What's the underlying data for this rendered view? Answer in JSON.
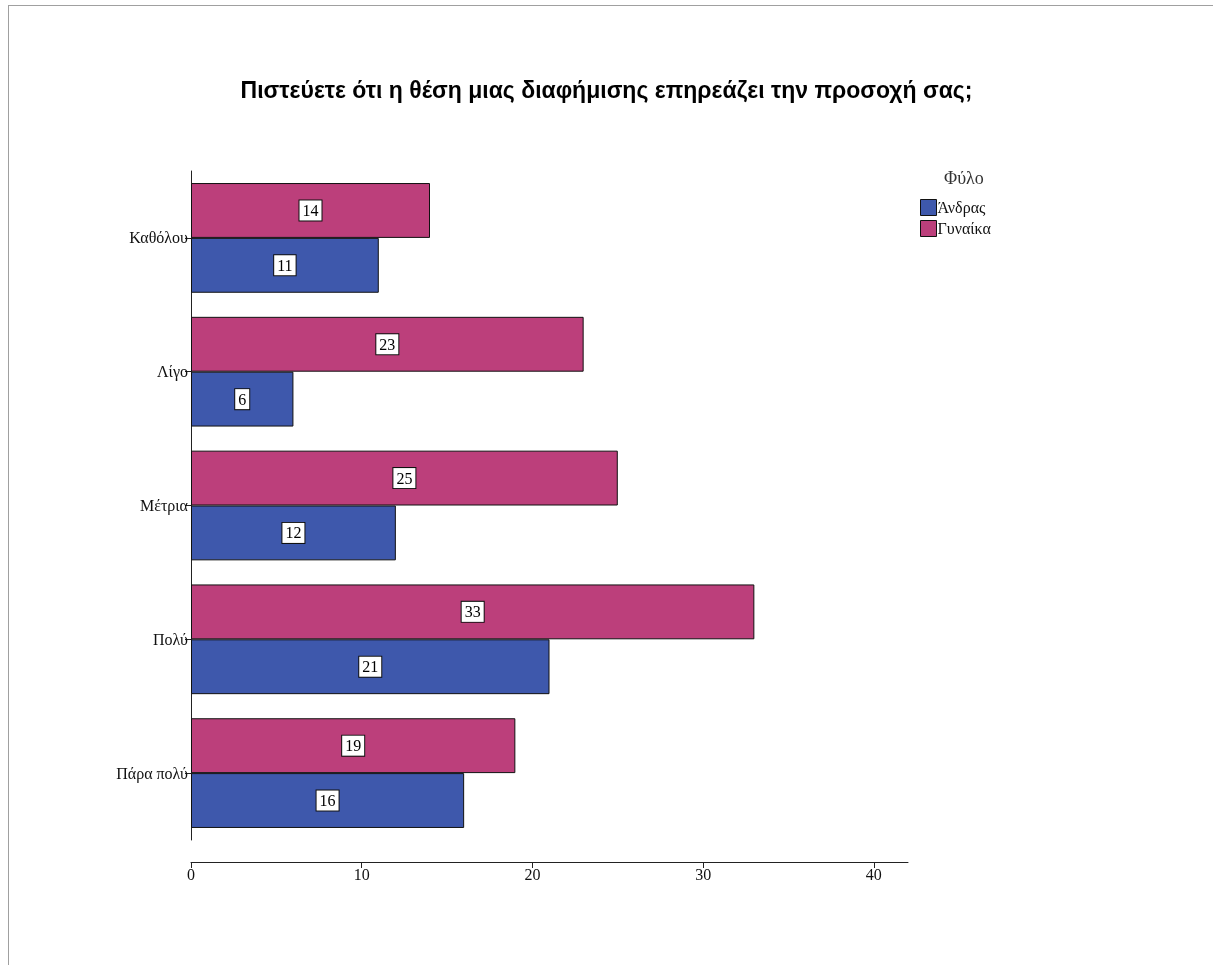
{
  "chart_data": {
    "type": "bar",
    "orientation": "horizontal",
    "title": "Πιστεύετε ότι η θέση μιας διαφήμισης επηρεάζει την προσοχή σας;",
    "legend_title": "Φύλο",
    "categories": [
      "Καθόλου",
      "Λίγο",
      "Μέτρια",
      "Πολύ",
      "Πάρα πολύ"
    ],
    "series": [
      {
        "name": "Άνδρας",
        "color": "#3e58ac",
        "values": [
          11,
          6,
          12,
          21,
          16
        ]
      },
      {
        "name": "Γυναίκα",
        "color": "#bc3f7b",
        "values": [
          14,
          23,
          25,
          33,
          19
        ]
      }
    ],
    "xlim": [
      0,
      42
    ],
    "xticks": [
      0,
      10,
      20,
      30,
      40
    ],
    "data_labels": true,
    "legend": "top right"
  }
}
